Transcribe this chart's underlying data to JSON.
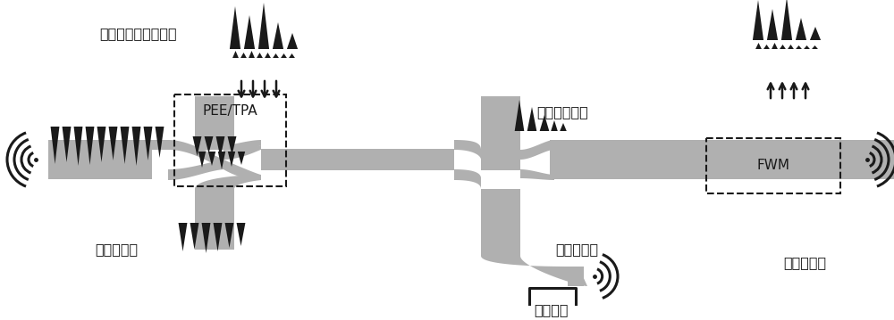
{
  "bg_color": "#ffffff",
  "wc": "#b0b0b0",
  "dc": "#1a1a1a",
  "labels": {
    "free_space": "自由空间光通信信号",
    "pee_tpa": "PEE/TPA",
    "optical_splitter": "光学分束器",
    "pump": "泵浦光场",
    "fiber_signal": "光纤通信信号",
    "directional": "定向耦合器",
    "fwm": "FWM",
    "grating": "光栅耦合器"
  },
  "fig_width": 10.0,
  "fig_height": 3.59,
  "dpi": 100
}
